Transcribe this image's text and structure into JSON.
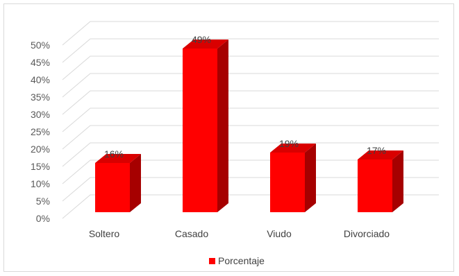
{
  "chart_data": {
    "type": "bar",
    "categories": [
      "Soltero",
      "Casado",
      "Viudo",
      "Divorciado"
    ],
    "series": [
      {
        "name": "Porcentaje",
        "values": [
          16,
          49,
          19,
          17
        ]
      }
    ],
    "data_labels": [
      "16%",
      "49%",
      "19%",
      "17%"
    ],
    "y_ticks": [
      "0%",
      "5%",
      "10%",
      "15%",
      "20%",
      "25%",
      "30%",
      "35%",
      "40%",
      "45%",
      "50%"
    ],
    "ylim": [
      0,
      50
    ],
    "grid": true,
    "legend": "bottom",
    "style": "3d-column"
  },
  "colors": {
    "front": "#ff0000",
    "top": "#d90000",
    "side": "#a60000",
    "grid": "#d9d9d9"
  }
}
